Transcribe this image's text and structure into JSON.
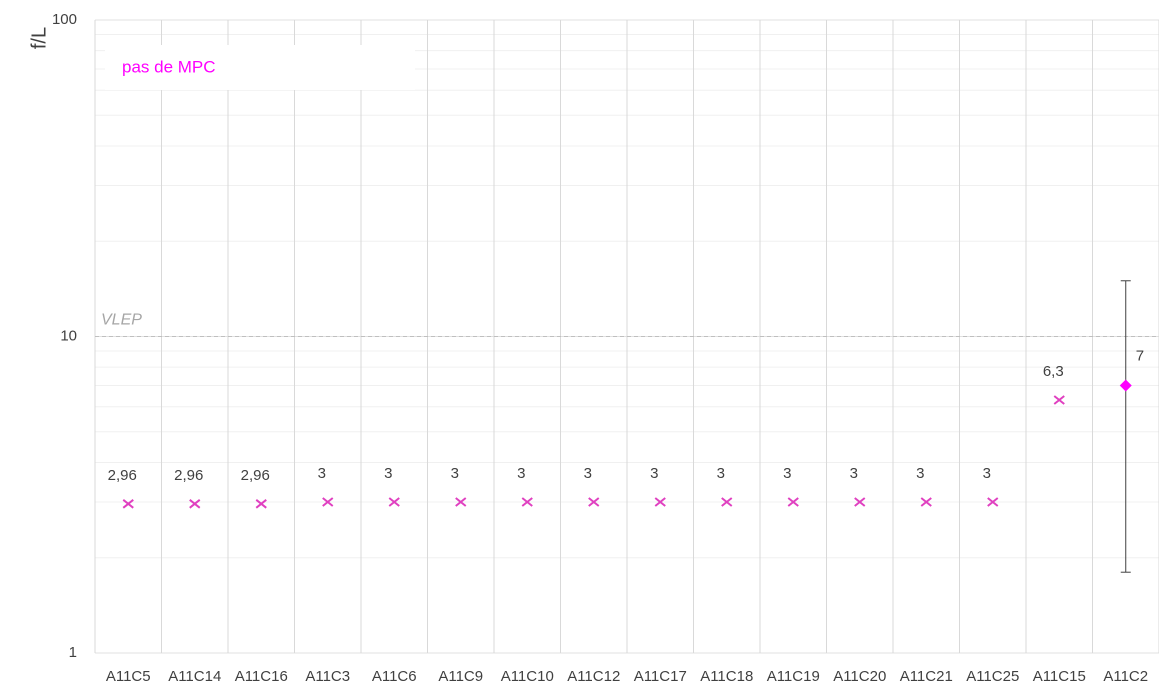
{
  "chart_data": {
    "type": "scatter",
    "y_label": "f/L",
    "categories": [
      "A11C5",
      "A11C14",
      "A11C16",
      "A11C3",
      "A11C6",
      "A11C9",
      "A11C10",
      "A11C12",
      "A11C17",
      "A11C18",
      "A11C19",
      "A11C20",
      "A11C21",
      "A11C25",
      "A11C15",
      "A11C2"
    ],
    "values": [
      2.96,
      2.96,
      2.96,
      3,
      3,
      3,
      3,
      3,
      3,
      3,
      3,
      3,
      3,
      3,
      6.3,
      7
    ],
    "value_labels": [
      "2,96",
      "2,96",
      "2,96",
      "3",
      "3",
      "3",
      "3",
      "3",
      "3",
      "3",
      "3",
      "3",
      "3",
      "3",
      "6,3",
      "7"
    ],
    "markers": [
      "x",
      "x",
      "x",
      "x",
      "x",
      "x",
      "x",
      "x",
      "x",
      "x",
      "x",
      "x",
      "x",
      "x",
      "x",
      "diamond"
    ],
    "colors": [
      "#e040c0",
      "#e040c0",
      "#e040c0",
      "#e040c0",
      "#e040c0",
      "#e040c0",
      "#e040c0",
      "#e040c0",
      "#e040c0",
      "#e040c0",
      "#e040c0",
      "#e040c0",
      "#e040c0",
      "#e040c0",
      "#e040c0",
      "#ff00ff"
    ],
    "error_low": [
      null,
      null,
      null,
      null,
      null,
      null,
      null,
      null,
      null,
      null,
      null,
      null,
      null,
      null,
      null,
      1.8
    ],
    "error_high": [
      null,
      null,
      null,
      null,
      null,
      null,
      null,
      null,
      null,
      null,
      null,
      null,
      null,
      null,
      null,
      15
    ],
    "ylim": [
      1,
      100
    ],
    "yticks": [
      1,
      10,
      100
    ],
    "minor_yticks": [
      2,
      3,
      4,
      5,
      6,
      7,
      8,
      9,
      20,
      30,
      40,
      50,
      60,
      70,
      80,
      90
    ],
    "log_y": true,
    "grid": true,
    "reference_line": {
      "value": 10,
      "label": "VLEP"
    },
    "annotation": {
      "text": "pas de MPC",
      "color": "#ff00ff"
    }
  }
}
